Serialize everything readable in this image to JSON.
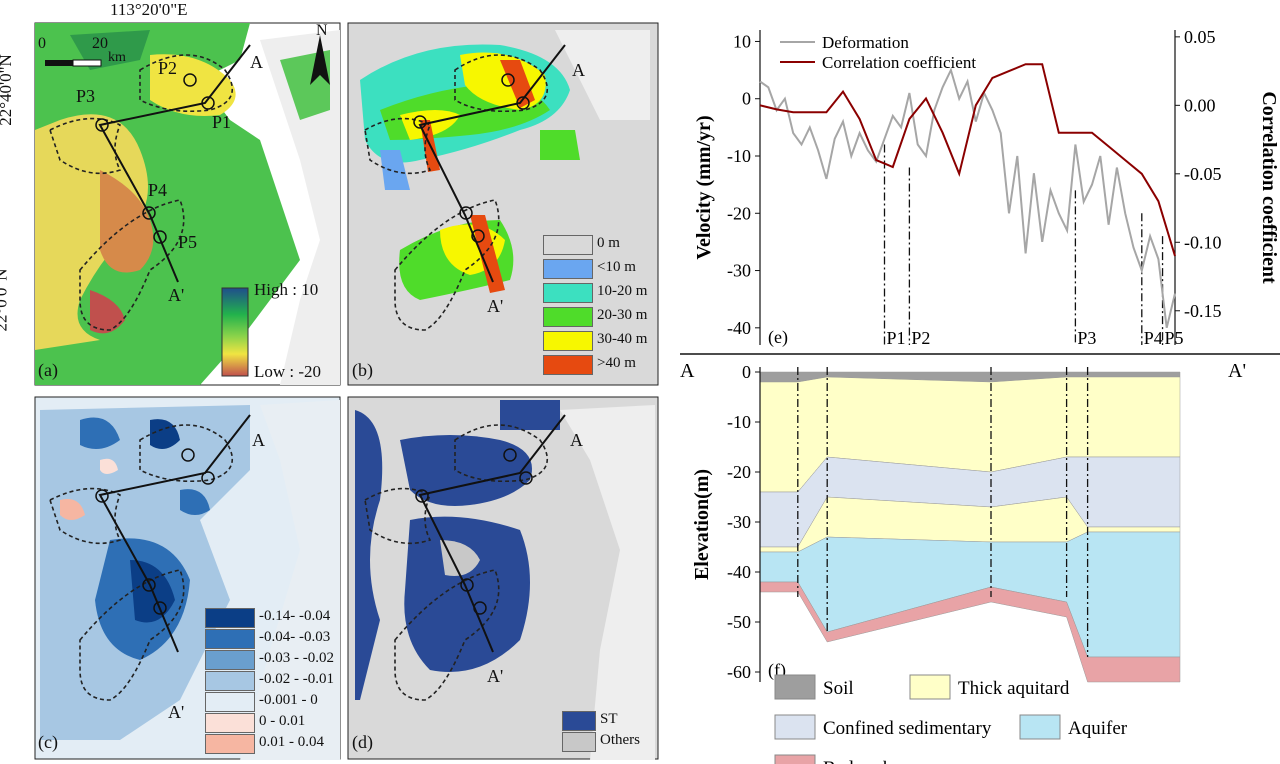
{
  "coords": {
    "lon_top": "113°20'0\"E",
    "lat_top": "22°40'0\"N",
    "lat_bottom": "22°0'0\"N"
  },
  "scale_bar": {
    "zero": "0",
    "twenty": "20",
    "unit": "km"
  },
  "north": "N",
  "profile_labels": {
    "a": "A",
    "a_prime": "A'",
    "p1": "P1",
    "p2": "P2",
    "p3": "P3",
    "p4": "P4",
    "p5": "P5"
  },
  "panel_a": {
    "label": "(a)",
    "legend_high": "High : 10",
    "legend_low": "Low : -20",
    "colors": {
      "high": "#1f4e8c",
      "mid_green": "#22b24c",
      "yellow": "#f0e442",
      "low": "#c0504d"
    }
  },
  "panel_b": {
    "label": "(b)",
    "legend": [
      {
        "label": "0 m",
        "color": "#d9d9d9"
      },
      {
        "label": "<10 m",
        "color": "#6aa6f0"
      },
      {
        "label": "10-20 m",
        "color": "#3ce0c0"
      },
      {
        "label": "20-30 m",
        "color": "#4fdc2a"
      },
      {
        "label": "30-40 m",
        "color": "#f7f700"
      },
      {
        "label": ">40 m",
        "color": "#e64a10"
      }
    ]
  },
  "panel_c": {
    "label": "(c)",
    "legend": [
      {
        "label": "-0.14- -0.04",
        "color": "#0b3e86"
      },
      {
        "label": "-0.04- -0.03",
        "color": "#2e6fb5"
      },
      {
        "label": "-0.03 - -0.02",
        "color": "#6a9fce"
      },
      {
        "label": "-0.02 - -0.01",
        "color": "#a7c7e3"
      },
      {
        "label": "-0.001 - 0",
        "color": "#e3edf5"
      },
      {
        "label": "0 - 0.01",
        "color": "#fbe0d8"
      },
      {
        "label": "0.01 - 0.04",
        "color": "#f6b6a2"
      }
    ]
  },
  "panel_d": {
    "label": "(d)",
    "legend": [
      {
        "label": "ST",
        "color": "#2a4a96"
      },
      {
        "label": "Others",
        "color": "#c8c8c8"
      }
    ]
  },
  "chart_data": [
    {
      "type": "line",
      "label": "(e)",
      "ylabel": "Velocity (mm/yr)",
      "y2label": "Correlation coefficient",
      "ylim": [
        -43,
        12
      ],
      "y2lim": [
        -0.175,
        0.055
      ],
      "yticks": [
        "10",
        "0",
        "-10",
        "-20",
        "-30",
        "-40"
      ],
      "y2ticks": [
        "0.05",
        "0.00",
        "-0.05",
        "-0.10",
        "-0.15"
      ],
      "x_points": [
        "P1",
        "P2",
        "P3",
        "P4",
        "P5"
      ],
      "legend": [
        "Deformation",
        "Correlation coefficient"
      ],
      "colors": {
        "deformation": "#a6a6a6",
        "correlation": "#8b0000"
      },
      "series": [
        {
          "name": "Deformation",
          "x": [
            0,
            2,
            4,
            6,
            8,
            10,
            12,
            14,
            16,
            18,
            20,
            22,
            24,
            26,
            28,
            30,
            32,
            34,
            36,
            38,
            40,
            42,
            44,
            46,
            48,
            50,
            52,
            54,
            56,
            58,
            60,
            62,
            64,
            66,
            68,
            70,
            72,
            74,
            76,
            78,
            80,
            82,
            84,
            86,
            88,
            90,
            92,
            94,
            96,
            98,
            100
          ],
          "values": [
            3,
            2,
            -2,
            0,
            -6,
            -8,
            -5,
            -9,
            -14,
            -7,
            -4,
            -10,
            -6,
            -9,
            -11,
            -7,
            -3,
            -5,
            1,
            -8,
            -10,
            -2,
            2,
            5,
            0,
            3,
            -4,
            1,
            -2,
            -6,
            -20,
            -10,
            -27,
            -13,
            -25,
            -16,
            -20,
            -23,
            -8,
            -18,
            -15,
            -10,
            -22,
            -12,
            -20,
            -26,
            -30,
            -24,
            -28,
            -40,
            -34
          ]
        },
        {
          "name": "Correlation coefficient",
          "x": [
            0,
            4,
            8,
            12,
            16,
            20,
            24,
            28,
            32,
            36,
            40,
            44,
            48,
            52,
            56,
            60,
            64,
            68,
            72,
            76,
            80,
            84,
            88,
            92,
            96,
            100
          ],
          "values": [
            0.0,
            -0.003,
            -0.005,
            -0.005,
            -0.005,
            0.01,
            -0.01,
            -0.04,
            -0.045,
            -0.01,
            0.005,
            -0.02,
            -0.05,
            0.0,
            0.02,
            0.025,
            0.03,
            0.03,
            -0.02,
            -0.02,
            -0.02,
            -0.03,
            -0.04,
            -0.05,
            -0.07,
            -0.11
          ]
        }
      ]
    },
    {
      "type": "area",
      "label": "(f)",
      "ylabel": "Elevation(m)",
      "ylim": [
        -62,
        1
      ],
      "yticks": [
        "0",
        "-10",
        "-20",
        "-30",
        "-40",
        "-50",
        "-60"
      ],
      "section_start": "A",
      "section_end": "A'",
      "x": [
        0,
        9,
        16,
        55,
        73,
        78,
        100
      ],
      "layers": [
        {
          "name": "Soil",
          "color": "#9e9e9e",
          "top": [
            0,
            0,
            0,
            0,
            0,
            0,
            0
          ],
          "bottom": [
            -2,
            -2,
            -1,
            -2,
            -1,
            -1,
            -1
          ]
        },
        {
          "name": "Thick aquitard",
          "color": "#ffffc8",
          "top": [
            -2,
            -2,
            -1,
            -2,
            -1,
            -1,
            -1
          ],
          "bottom": [
            -24,
            -24,
            -17,
            -20,
            -17,
            -17,
            -17
          ]
        },
        {
          "name": "Confined sedimentary",
          "color": "#dbe3f0",
          "top": [
            -24,
            -24,
            -17,
            -20,
            -17,
            -17,
            -17
          ],
          "bottom": [
            -35,
            -35,
            -25,
            -27,
            -25,
            -31,
            -31
          ]
        },
        {
          "name": "Thick aquitard",
          "color": "#ffffc8",
          "top": [
            -35,
            -35,
            -25,
            -27,
            -25,
            -31,
            -31
          ],
          "bottom": [
            -36,
            -36,
            -33,
            -34,
            -34,
            -32,
            -32
          ]
        },
        {
          "name": "Aquifer",
          "color": "#b8e5f3",
          "top": [
            -36,
            -36,
            -33,
            -34,
            -34,
            -32,
            -32
          ],
          "bottom": [
            -42,
            -42,
            -52,
            -43,
            -46,
            -57,
            -57
          ]
        },
        {
          "name": "Bed rock",
          "color": "#e8a3a6",
          "top": [
            -42,
            -42,
            -52,
            -43,
            -46,
            -57,
            -57
          ],
          "bottom": [
            -44,
            -44,
            -54,
            -46,
            -49,
            -62,
            -62
          ]
        }
      ],
      "legend": [
        "Soil",
        "Thick aquitard",
        "Confined sedimentary",
        "Aquifer",
        "Bed rock"
      ]
    }
  ]
}
